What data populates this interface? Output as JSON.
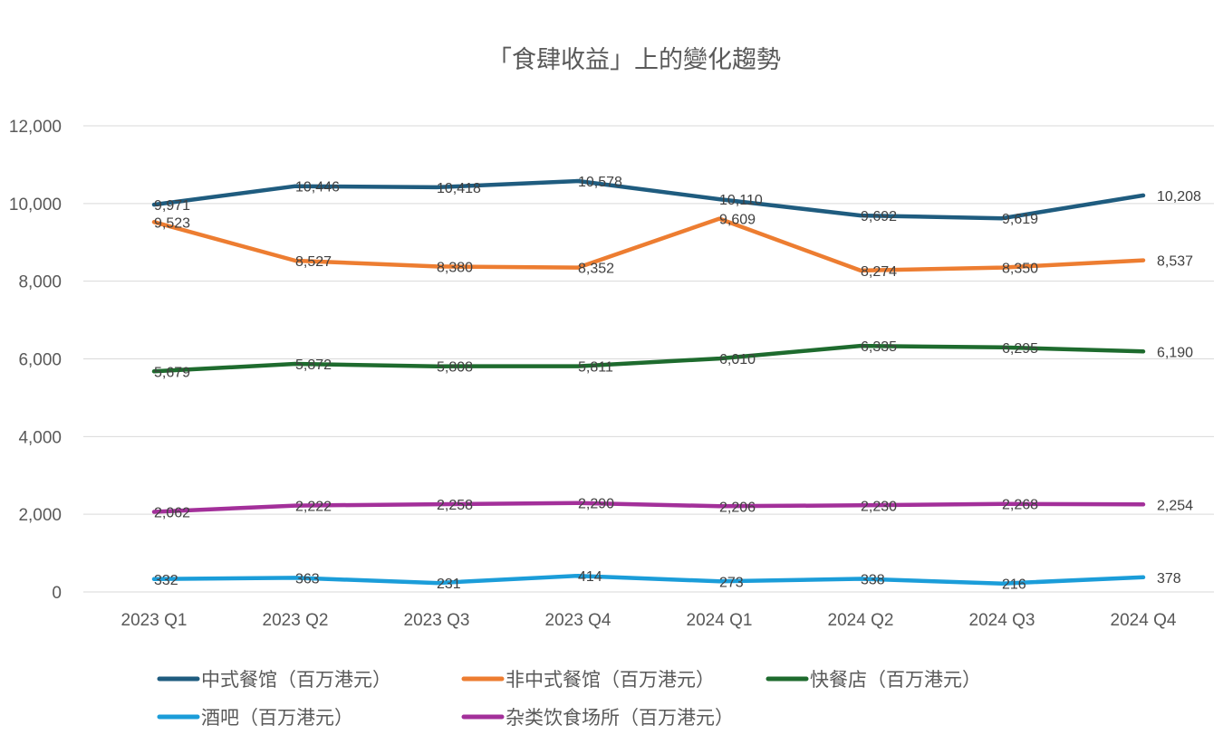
{
  "chart_data": {
    "type": "line",
    "title": "「食肆收益」上的變化趨勢",
    "xlabel": "",
    "ylabel": "",
    "categories": [
      "2023 Q1",
      "2023 Q2",
      "2023 Q3",
      "2023 Q4",
      "2024 Q1",
      "2024 Q2",
      "2024 Q3",
      "2024 Q4"
    ],
    "ylim": [
      0,
      12000
    ],
    "yticks": [
      0,
      2000,
      4000,
      6000,
      8000,
      10000,
      12000
    ],
    "ytick_labels": [
      "0",
      "2,000",
      "4,000",
      "6,000",
      "8,000",
      "10,000",
      "12,000"
    ],
    "grid": true,
    "legend_position": "bottom",
    "series": [
      {
        "name": "中式餐馆（百万港元）",
        "color": "#1f5c7f",
        "values": [
          9971,
          10446,
          10418,
          10578,
          10110,
          9692,
          9619,
          10208
        ],
        "labels": [
          "9,971",
          "10,446",
          "10,418",
          "10,578",
          "10,110",
          "9,692",
          "9,619",
          "10,208"
        ]
      },
      {
        "name": "非中式餐馆（百万港元）",
        "color": "#ed7d31",
        "values": [
          9523,
          8527,
          8380,
          8352,
          9609,
          8274,
          8350,
          8537
        ],
        "labels": [
          "9,523",
          "8,527",
          "8,380",
          "8,352",
          "9,609",
          "8,274",
          "8,350",
          "8,537"
        ]
      },
      {
        "name": "快餐店（百万港元）",
        "color": "#1e6b2e",
        "values": [
          5679,
          5872,
          5808,
          5811,
          6010,
          6335,
          6295,
          6190
        ],
        "labels": [
          "5,679",
          "5,872",
          "5,808",
          "5,811",
          "6,010",
          "6,335",
          "6,295",
          "6,190"
        ]
      },
      {
        "name": "酒吧（百万港元）",
        "color": "#1b9dd9",
        "values": [
          332,
          363,
          231,
          414,
          273,
          338,
          216,
          378
        ],
        "labels": [
          "332",
          "363",
          "231",
          "414",
          "273",
          "338",
          "216",
          "378"
        ]
      },
      {
        "name": "杂类饮食场所（百万港元）",
        "color": "#a3309a",
        "values": [
          2062,
          2222,
          2258,
          2290,
          2206,
          2230,
          2268,
          2254
        ],
        "labels": [
          "2,062",
          "2,222",
          "2,258",
          "2,290",
          "2,206",
          "2,230",
          "2,268",
          "2,254"
        ]
      }
    ]
  }
}
